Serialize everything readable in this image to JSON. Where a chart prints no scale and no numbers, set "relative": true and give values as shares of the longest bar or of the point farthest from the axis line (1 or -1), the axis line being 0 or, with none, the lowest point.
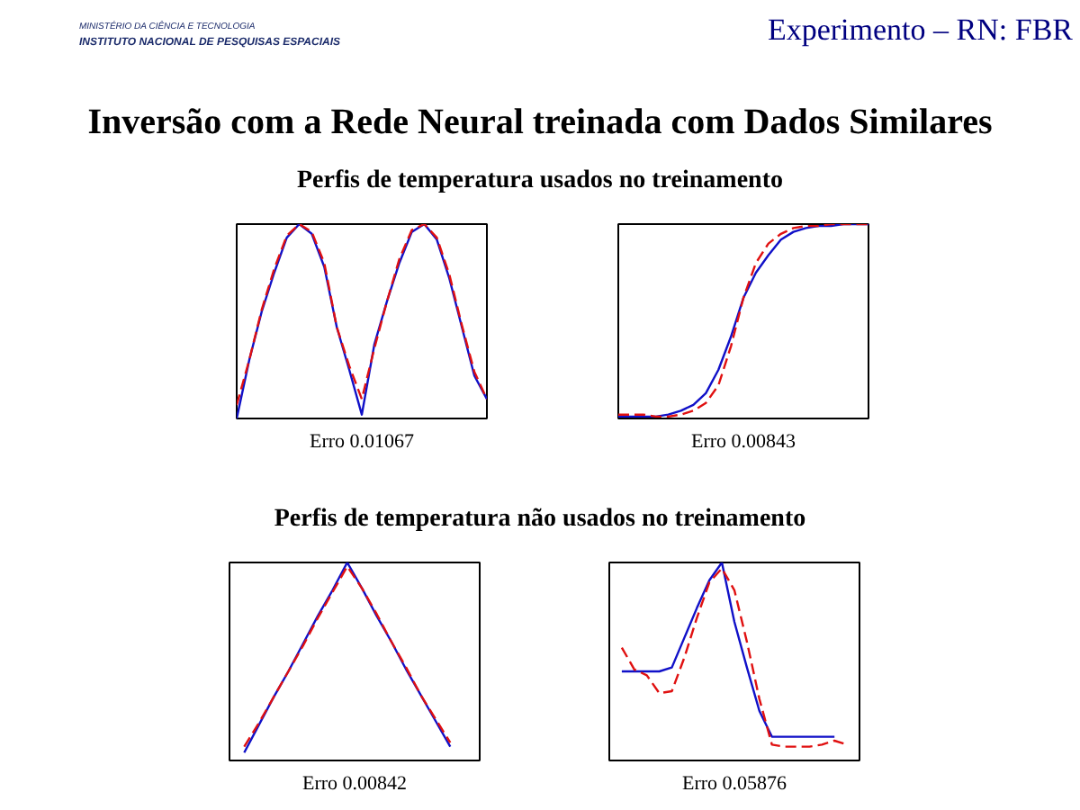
{
  "chart_data": [
    {
      "type": "other",
      "title": "Inversão com a Rede Neural treinada com Dados Similares",
      "annotations": [
        "MINISTÉRIO DA CIÊNCIA E TECNOLOGIA",
        "INSTITUTO NACIONAL DE PESQUISAS ESPACIAIS",
        "Experimento – RN: FBR"
      ]
    },
    {
      "type": "line",
      "title": "Perfis de temperatura usados no treinamento",
      "relative": true,
      "annotations": [
        "Erro 0.01067"
      ],
      "categories": [
        null,
        null,
        null,
        null,
        null,
        null,
        null,
        null,
        null,
        null,
        null,
        null,
        null,
        null,
        null,
        null,
        null,
        null,
        null,
        null,
        null
      ],
      "series": [
        {
          "color": "#1010c8",
          "values": [
            0.0,
            0.3,
            0.55,
            0.75,
            0.93,
            1.0,
            0.95,
            0.78,
            0.47,
            0.25,
            0.02,
            0.38,
            0.6,
            0.8,
            0.96,
            1.0,
            0.92,
            0.72,
            0.47,
            0.22,
            0.1
          ]
        },
        {
          "color": "#e01010",
          "line_style": "dashed",
          "values": [
            0.07,
            0.3,
            0.56,
            0.77,
            0.94,
            1.0,
            0.96,
            0.8,
            0.47,
            0.27,
            0.1,
            0.36,
            0.6,
            0.82,
            0.97,
            1.0,
            0.93,
            0.74,
            0.48,
            0.24,
            0.1
          ]
        }
      ]
    },
    {
      "type": "line",
      "relative": true,
      "annotations": [
        "Erro 0.00843"
      ],
      "categories": [
        null,
        null,
        null,
        null,
        null,
        null,
        null,
        null,
        null,
        null,
        null,
        null,
        null,
        null,
        null,
        null,
        null,
        null,
        null,
        null,
        null
      ],
      "series": [
        {
          "color": "#1010c8",
          "values": [
            0.01,
            0.01,
            0.01,
            0.01,
            0.02,
            0.04,
            0.07,
            0.13,
            0.25,
            0.42,
            0.62,
            0.75,
            0.84,
            0.92,
            0.96,
            0.98,
            0.99,
            0.99,
            1.0,
            1.0,
            1.0
          ]
        },
        {
          "color": "#e01010",
          "line_style": "dashed",
          "values": [
            0.02,
            0.02,
            0.02,
            0.01,
            0.01,
            0.02,
            0.04,
            0.08,
            0.17,
            0.37,
            0.62,
            0.8,
            0.9,
            0.95,
            0.98,
            0.99,
            0.99,
            1.0,
            1.0,
            1.0,
            1.0
          ]
        }
      ]
    },
    {
      "type": "line",
      "title": "Perfis de temperatura não usados no treinamento",
      "relative": true,
      "annotations": [
        "Erro 0.00842"
      ],
      "categories": [
        null,
        null,
        null,
        null,
        null,
        null,
        null,
        null,
        null,
        null,
        null,
        null,
        null,
        null,
        null,
        null,
        null,
        null
      ],
      "series": [
        {
          "color": "#1010c8",
          "values": [
            null,
            0.04,
            0.18,
            0.32,
            0.45,
            0.59,
            0.73,
            0.86,
            1.0,
            0.87,
            0.73,
            0.6,
            0.46,
            0.33,
            0.2,
            0.07,
            null,
            null
          ]
        },
        {
          "color": "#e01010",
          "line_style": "dashed",
          "values": [
            null,
            0.07,
            0.19,
            0.32,
            0.45,
            0.58,
            0.72,
            0.85,
            0.98,
            0.87,
            0.74,
            0.6,
            0.47,
            0.33,
            0.21,
            0.09,
            null,
            null
          ]
        }
      ]
    },
    {
      "type": "line",
      "relative": true,
      "annotations": [
        "Erro 0.05876"
      ],
      "categories": [
        null,
        null,
        null,
        null,
        null,
        null,
        null,
        null,
        null,
        null,
        null,
        null,
        null,
        null,
        null,
        null,
        null,
        null,
        null,
        null,
        null
      ],
      "series": [
        {
          "color": "#1010c8",
          "values": [
            null,
            0.45,
            0.45,
            0.45,
            0.45,
            0.47,
            0.62,
            0.77,
            0.91,
            1.0,
            0.7,
            0.47,
            0.25,
            0.12,
            0.12,
            0.12,
            0.12,
            0.12,
            0.12,
            null,
            null
          ]
        },
        {
          "color": "#e01010",
          "line_style": "dashed",
          "values": [
            null,
            0.57,
            0.46,
            0.43,
            0.34,
            0.35,
            0.52,
            0.72,
            0.9,
            0.97,
            0.86,
            0.6,
            0.31,
            0.08,
            0.07,
            0.07,
            0.07,
            0.08,
            0.1,
            0.08,
            null
          ]
        }
      ]
    }
  ]
}
